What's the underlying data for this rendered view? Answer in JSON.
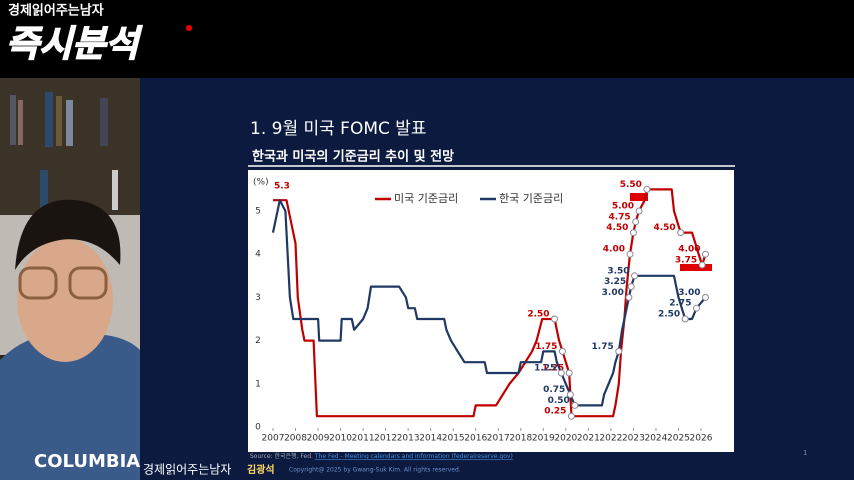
{
  "header": {
    "brand": "경제읽어주는남자",
    "title": "즉시분석"
  },
  "webcam": {
    "shirt_text": "COLUMBIA"
  },
  "slide": {
    "title": "1. 9월 미국 FOMC 발표",
    "subtitle": "한국과 미국의 기준금리 추이 및 전망",
    "source": "Source: 한국은행, Fed.",
    "source_link": "The Fed - Meeting calendars and information (federalreserve.gov)",
    "page_number": "1"
  },
  "footer": {
    "brand": "경제읽어주는남자",
    "name": "김광석",
    "copyright": "Copyright@ 2025 by Gwang-Suk Kim. All rights reserved."
  },
  "chart_data": {
    "type": "line",
    "y_label": "(%)",
    "legend": "top",
    "grid": false,
    "xlim": [
      2006.8,
      2026.6
    ],
    "xticks": [
      2007,
      2008,
      2009,
      2010,
      2011,
      2012,
      2013,
      2014,
      2015,
      2016,
      2017,
      2018,
      2019,
      2020,
      2021,
      2022,
      2023,
      2024,
      2025,
      2026
    ],
    "ylim": [
      0,
      5.5
    ],
    "yticks": [
      0,
      1,
      2,
      3,
      4,
      5
    ],
    "series": [
      {
        "name": "미국 기준금리",
        "color": "#c00000",
        "x": [
          2007.0,
          2007.6,
          2007.8,
          2008.0,
          2008.1,
          2008.3,
          2008.4,
          2008.8,
          2008.95,
          2015.9,
          2016.0,
          2016.9,
          2017.2,
          2017.5,
          2017.9,
          2018.2,
          2018.5,
          2018.7,
          2018.95,
          2019.5,
          2019.6,
          2019.7,
          2019.85,
          2020.15,
          2020.25,
          2022.1,
          2022.2,
          2022.35,
          2022.45,
          2022.6,
          2022.7,
          2022.85,
          2023.0,
          2023.1,
          2023.25,
          2023.5,
          2023.6,
          2024.7,
          2024.8,
          2024.95,
          2025.1,
          2025.6,
          2025.75,
          2025.9,
          2026.05,
          2026.2
        ],
        "values": [
          5.25,
          5.25,
          4.75,
          4.25,
          3.0,
          2.25,
          2.0,
          2.0,
          0.25,
          0.25,
          0.5,
          0.5,
          0.75,
          1.0,
          1.25,
          1.5,
          1.75,
          2.0,
          2.5,
          2.5,
          2.25,
          2.0,
          1.75,
          1.25,
          0.25,
          0.25,
          0.5,
          1.0,
          1.75,
          2.5,
          3.25,
          4.0,
          4.5,
          4.75,
          5.0,
          5.25,
          5.5,
          5.5,
          5.0,
          4.75,
          4.5,
          4.5,
          4.25,
          4.0,
          3.75,
          4.0
        ],
        "value_labels": [
          "5.3",
          null,
          null,
          null,
          null,
          null,
          null,
          null,
          null,
          null,
          null,
          null,
          null,
          null,
          null,
          null,
          null,
          null,
          null,
          "2.50",
          null,
          null,
          "1.75",
          "1.25",
          "0.25",
          null,
          null,
          null,
          null,
          null,
          null,
          "4.00",
          "4.50",
          "4.75",
          "5.00",
          null,
          "5.50",
          null,
          null,
          null,
          "4.50",
          null,
          null,
          null,
          "3.75",
          "4.00"
        ]
      },
      {
        "name": "한국 기준금리",
        "color": "#1f3864",
        "x": [
          2007.0,
          2007.3,
          2007.55,
          2007.75,
          2007.9,
          2009.0,
          2009.05,
          2010.0,
          2010.05,
          2010.5,
          2010.6,
          2011.0,
          2011.2,
          2011.35,
          2012.6,
          2012.9,
          2013.0,
          2013.3,
          2013.4,
          2014.6,
          2014.7,
          2014.9,
          2015.2,
          2015.5,
          2016.4,
          2016.5,
          2017.9,
          2018.0,
          2018.9,
          2019.0,
          2019.5,
          2019.6,
          2019.8,
          2020.2,
          2020.4,
          2021.6,
          2021.7,
          2021.9,
          2022.1,
          2022.2,
          2022.35,
          2022.5,
          2022.6,
          2022.8,
          2022.9,
          2023.05,
          2024.8,
          2024.9,
          2025.0,
          2025.15,
          2025.3,
          2025.6,
          2025.8,
          2026.2
        ],
        "values": [
          4.5,
          5.25,
          5.0,
          3.0,
          2.5,
          2.5,
          2.0,
          2.0,
          2.5,
          2.5,
          2.25,
          2.5,
          2.75,
          3.25,
          3.25,
          3.0,
          2.75,
          2.75,
          2.5,
          2.5,
          2.25,
          2.0,
          1.75,
          1.5,
          1.5,
          1.25,
          1.25,
          1.5,
          1.5,
          1.75,
          1.75,
          1.5,
          1.25,
          0.75,
          0.5,
          0.5,
          0.75,
          1.0,
          1.25,
          1.5,
          1.75,
          2.25,
          2.5,
          3.0,
          3.25,
          3.5,
          3.5,
          3.25,
          3.0,
          2.75,
          2.5,
          2.5,
          2.75,
          3.0
        ],
        "value_labels": [
          null,
          null,
          null,
          null,
          null,
          null,
          null,
          null,
          null,
          null,
          null,
          null,
          null,
          null,
          null,
          null,
          null,
          null,
          null,
          null,
          null,
          null,
          null,
          null,
          null,
          null,
          null,
          null,
          null,
          null,
          null,
          null,
          "1.25",
          "0.75",
          "0.50",
          null,
          null,
          null,
          null,
          null,
          "1.75",
          null,
          null,
          "3.00",
          "3.25",
          "3.50",
          null,
          null,
          null,
          null,
          "2.50",
          null,
          "2.75",
          "3.00"
        ]
      }
    ]
  }
}
